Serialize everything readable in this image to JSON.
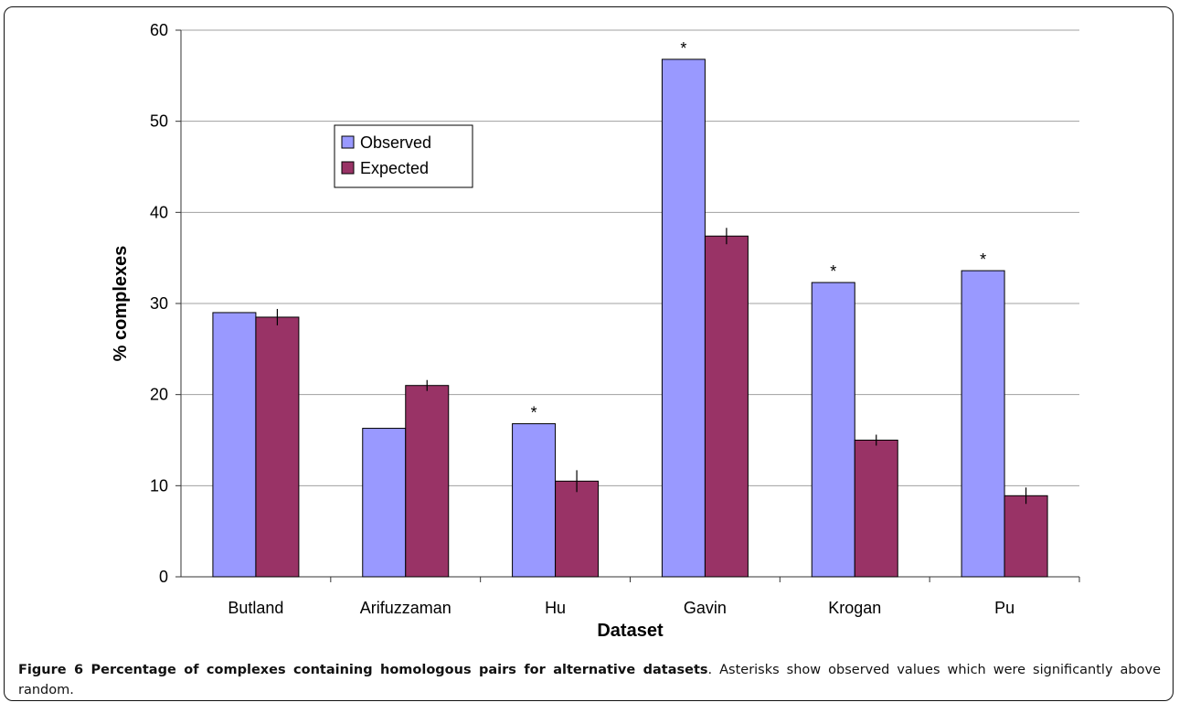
{
  "chart_data": {
    "type": "bar",
    "title": "",
    "xlabel": "Dataset",
    "ylabel": "% complexes",
    "ylim": [
      0,
      60
    ],
    "yticks": [
      0,
      10,
      20,
      30,
      40,
      50,
      60
    ],
    "grid": true,
    "legend_position": "upper-left-inside",
    "categories": [
      "Butland",
      "Arifuzzaman",
      "Hu",
      "Gavin",
      "Krogan",
      "Pu"
    ],
    "series": [
      {
        "name": "Observed",
        "color": "#9999ff",
        "values": [
          29.0,
          16.3,
          16.8,
          56.8,
          32.3,
          33.6
        ],
        "significant": [
          false,
          false,
          true,
          true,
          true,
          true
        ],
        "errors": [
          0,
          0,
          0,
          0,
          0,
          0
        ]
      },
      {
        "name": "Expected",
        "color": "#993366",
        "values": [
          28.5,
          21.0,
          10.5,
          37.4,
          15.0,
          8.9
        ],
        "errors": [
          0.9,
          0.6,
          1.2,
          0.9,
          0.6,
          0.9
        ]
      }
    ],
    "significance_marker": "*"
  },
  "caption": {
    "label": "Figure 6 Percentage of complexes containing homologous pairs for alternative datasets",
    "text": ". Asterisks show observed values which were significantly above random."
  }
}
